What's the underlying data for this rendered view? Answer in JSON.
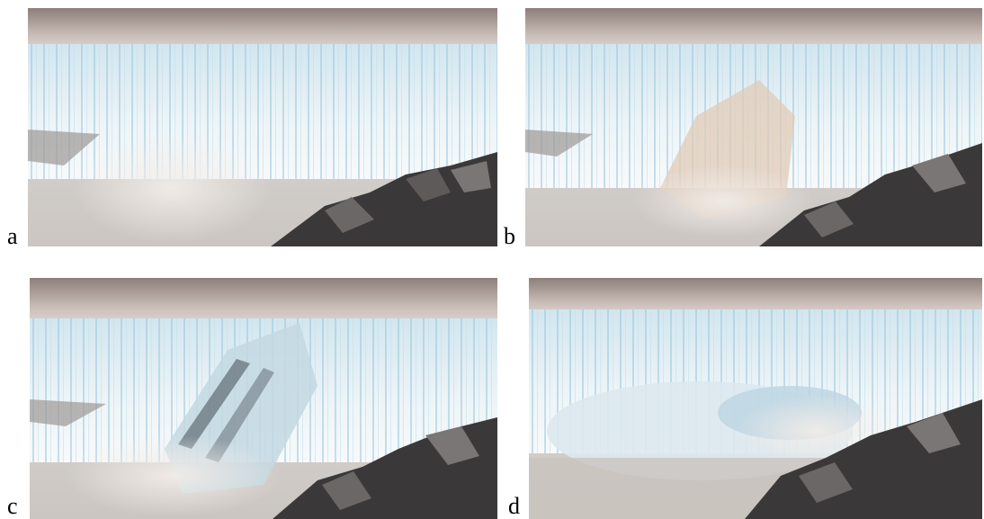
{
  "panels": [
    {
      "label": "a",
      "stage": "calving-start"
    },
    {
      "label": "b",
      "stage": "ice-slab-separating"
    },
    {
      "label": "c",
      "stage": "slab-collapsing"
    },
    {
      "label": "d",
      "stage": "splash-aftermath"
    }
  ],
  "colors": {
    "sky_ice_top": "#b8a9a2",
    "ice_face": "#e6f1f6",
    "ice_blue": "#a9d0e3",
    "water": "#d9d6d3",
    "rock": "#3a3838",
    "spray": "#e9e4df"
  }
}
